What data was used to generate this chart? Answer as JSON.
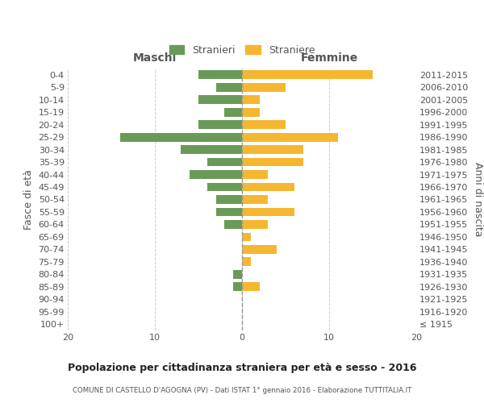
{
  "age_groups": [
    "100+",
    "95-99",
    "90-94",
    "85-89",
    "80-84",
    "75-79",
    "70-74",
    "65-69",
    "60-64",
    "55-59",
    "50-54",
    "45-49",
    "40-44",
    "35-39",
    "30-34",
    "25-29",
    "20-24",
    "15-19",
    "10-14",
    "5-9",
    "0-4"
  ],
  "birth_years": [
    "≤ 1915",
    "1916-1920",
    "1921-1925",
    "1926-1930",
    "1931-1935",
    "1936-1940",
    "1941-1945",
    "1946-1950",
    "1951-1955",
    "1956-1960",
    "1961-1965",
    "1966-1970",
    "1971-1975",
    "1976-1980",
    "1981-1985",
    "1986-1990",
    "1991-1995",
    "1996-2000",
    "2001-2005",
    "2006-2010",
    "2011-2015"
  ],
  "maschi": [
    0,
    0,
    0,
    1,
    1,
    0,
    0,
    0,
    2,
    3,
    3,
    4,
    6,
    4,
    7,
    14,
    5,
    2,
    5,
    3,
    5
  ],
  "femmine": [
    0,
    0,
    0,
    2,
    0,
    1,
    4,
    1,
    3,
    6,
    3,
    6,
    3,
    7,
    7,
    11,
    5,
    2,
    2,
    5,
    15
  ],
  "maschi_color": "#6a9a58",
  "femmine_color": "#f5b731",
  "bg_color": "#ffffff",
  "grid_color": "#cccccc",
  "title": "Popolazione per cittadinanza straniera per età e sesso - 2016",
  "subtitle": "COMUNE DI CASTELLO D'AGOGNA (PV) - Dati ISTAT 1° gennaio 2016 - Elaborazione TUTTITALIA.IT",
  "ylabel_left": "Fasce di età",
  "ylabel_right": "Anni di nascita",
  "legend_maschi": "Stranieri",
  "legend_femmine": "Straniere",
  "header_maschi": "Maschi",
  "header_femmine": "Femmine",
  "xlim": 20
}
